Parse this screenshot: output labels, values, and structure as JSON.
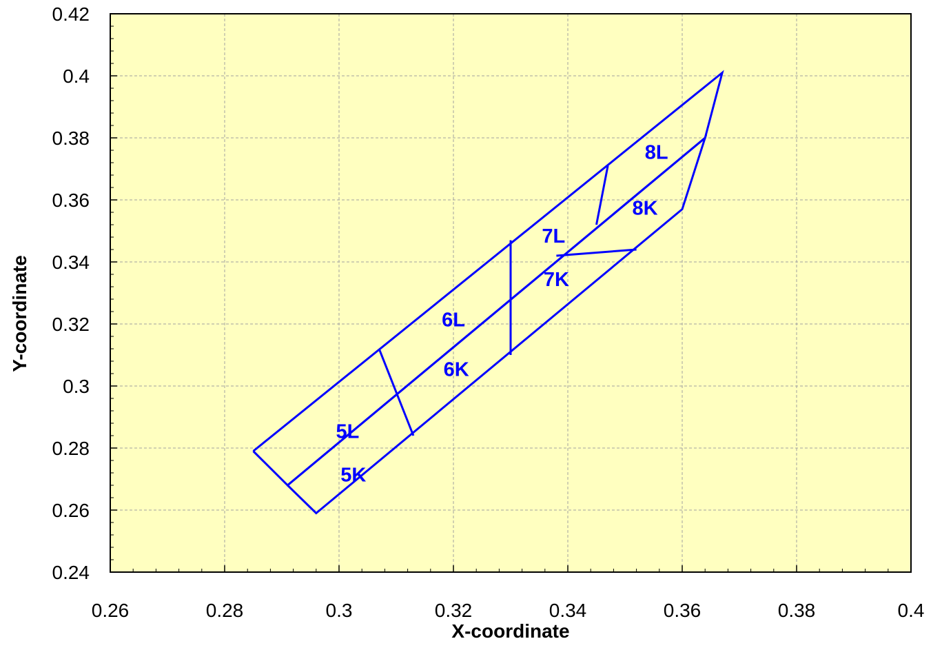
{
  "chart_data": {
    "type": "line",
    "title": "",
    "xlabel": "X-coordinate",
    "ylabel": "Y-coordinate",
    "xlim": [
      0.26,
      0.4
    ],
    "ylim": [
      0.24,
      0.42
    ],
    "x_ticks": [
      "0.26",
      "0.28",
      "0.3",
      "0.32",
      "0.34",
      "0.36",
      "0.38",
      "0.4"
    ],
    "y_ticks": [
      "0.24",
      "0.26",
      "0.28",
      "0.3",
      "0.32",
      "0.34",
      "0.36",
      "0.38",
      "0.4",
      "0.42"
    ],
    "x_tick_values": [
      0.26,
      0.28,
      0.3,
      0.32,
      0.34,
      0.36,
      0.38,
      0.4
    ],
    "y_tick_values": [
      0.24,
      0.26,
      0.28,
      0.3,
      0.32,
      0.34,
      0.36,
      0.38,
      0.4,
      0.42
    ],
    "grid": true,
    "colors": {
      "plot_background": "#ffffc0",
      "series": "#0000ff",
      "grid": "#a0a0a0",
      "axis": "#000000"
    },
    "series": [
      {
        "x": [
          0.285,
          0.367,
          0.364,
          0.291,
          0.285
        ],
        "y": [
          0.279,
          0.401,
          0.38,
          0.268,
          0.279
        ]
      },
      {
        "x": [
          0.291,
          0.364,
          0.36,
          0.296,
          0.291
        ],
        "y": [
          0.268,
          0.38,
          0.357,
          0.259,
          0.268
        ]
      },
      {
        "x": [
          0.307,
          0.313
        ],
        "y": [
          0.312,
          0.284
        ]
      },
      {
        "x": [
          0.33,
          0.33
        ],
        "y": [
          0.347,
          0.31
        ]
      },
      {
        "x": [
          0.347,
          0.345
        ],
        "y": [
          0.371,
          0.352
        ]
      },
      {
        "x": [
          0.338,
          0.352
        ],
        "y": [
          0.342,
          0.344
        ]
      }
    ],
    "annotations": [
      {
        "text": "5L",
        "x": 0.3015,
        "y": 0.2855
      },
      {
        "text": "5K",
        "x": 0.3025,
        "y": 0.2715
      },
      {
        "text": "6L",
        "x": 0.32,
        "y": 0.3215
      },
      {
        "text": "6K",
        "x": 0.3205,
        "y": 0.3055
      },
      {
        "text": "7L",
        "x": 0.3375,
        "y": 0.3485
      },
      {
        "text": "7K",
        "x": 0.338,
        "y": 0.3345
      },
      {
        "text": "8L",
        "x": 0.3555,
        "y": 0.3755
      },
      {
        "text": "8K",
        "x": 0.3535,
        "y": 0.3575
      }
    ]
  }
}
